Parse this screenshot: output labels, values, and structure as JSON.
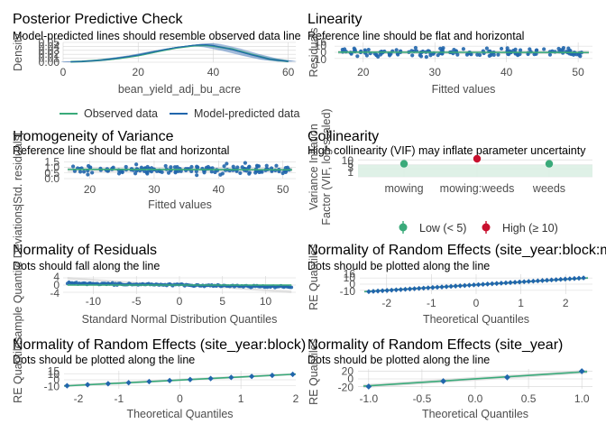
{
  "colors": {
    "green": "#3aaa7a",
    "blue": "#2166ac",
    "red": "#c8102e",
    "panel": "#ebebeb",
    "grid": "#d4d4d4",
    "band": "#d6d6d6"
  },
  "chart_data": [
    {
      "id": "ppc",
      "type": "line",
      "title": "Posterior Predictive Check",
      "subtitle": "Model-predicted lines should resemble observed data line",
      "xlabel": "bean_yield_adj_bu_acre",
      "ylabel": "Density",
      "xlim": [
        0,
        62
      ],
      "ylim": [
        0,
        0.05
      ],
      "xticks": [
        0,
        20,
        40,
        60
      ],
      "yticks": [
        "0.00",
        "0.01",
        "0.02",
        "0.03",
        "0.04",
        "0.05"
      ],
      "x": [
        2,
        5,
        10,
        15,
        20,
        25,
        30,
        35,
        38,
        40,
        45,
        50,
        55,
        60
      ],
      "series": [
        {
          "name": "Observed data",
          "values": [
            0.001,
            0.002,
            0.005,
            0.01,
            0.017,
            0.027,
            0.036,
            0.042,
            0.043,
            0.041,
            0.033,
            0.02,
            0.008,
            0.002
          ]
        },
        {
          "name": "Model-predicted data",
          "values": [
            0.001,
            0.002,
            0.005,
            0.011,
            0.018,
            0.028,
            0.037,
            0.043,
            0.044,
            0.042,
            0.032,
            0.019,
            0.008,
            0.002
          ]
        }
      ],
      "legend": [
        "Observed data",
        "Model-predicted data"
      ]
    },
    {
      "id": "lin",
      "type": "scatter",
      "title": "Linearity",
      "subtitle": "Reference line should be flat and horizontal",
      "xlabel": "Fitted values",
      "ylabel": "Residuals",
      "xlim": [
        16,
        52
      ],
      "ylim": [
        -16,
        16
      ],
      "xticks": [
        20,
        30,
        40,
        50
      ],
      "yticks": [
        16,
        10,
        0,
        -10
      ]
    },
    {
      "id": "hov",
      "type": "scatter",
      "title": "Homogeneity of Variance",
      "subtitle": "Reference line should be flat and horizontal",
      "xlabel": "Fitted values",
      "ylabel": "|Std. residuals|",
      "xlim": [
        16,
        52
      ],
      "ylim": [
        0,
        1.6
      ],
      "xticks": [
        20,
        30,
        40,
        50
      ],
      "yticks": [
        "1.5",
        "1.0",
        "0.5",
        "0.0"
      ]
    },
    {
      "id": "col",
      "type": "scatter",
      "title": "Collinearity",
      "subtitle": "High collinearity (VIF) may inflate parameter uncertainty",
      "xlabel": "",
      "ylabel": "Variance Inflation Factor (VIF, log-scaled)",
      "categories": [
        "mowing",
        "mowing:weeds",
        "weeds"
      ],
      "values": [
        5.8,
        11.5,
        5.8
      ],
      "yticks": [
        "10",
        "5",
        "3",
        "1"
      ],
      "legend": [
        "Low (< 5)",
        "High (≥ 10)"
      ]
    },
    {
      "id": "nres",
      "type": "scatter",
      "title": "Normality of Residuals",
      "subtitle": "Dots should fall along the line",
      "xlabel": "Standard Normal Distribution Quantiles",
      "ylabel": "Sample Quantile Deviations",
      "xlim": [
        -13.5,
        13.5
      ],
      "ylim": [
        -5,
        5
      ],
      "xticks": [
        "-10",
        "-5",
        "0",
        "5",
        "10"
      ],
      "yticks": [
        "4",
        "0",
        "-4"
      ]
    },
    {
      "id": "re1",
      "type": "scatter",
      "title": "Normality of Random Effects (site_year:block:mowing)",
      "subtitle": "Dots should be plotted along the line",
      "xlabel": "Theoretical Quantiles",
      "ylabel": "RE Quantiles",
      "xlim": [
        -2.6,
        2.6
      ],
      "ylim": [
        -16,
        16
      ],
      "xticks": [
        "-2",
        "-1",
        "0",
        "1",
        "2"
      ],
      "yticks": [
        "16",
        "10",
        "0",
        "-10"
      ]
    },
    {
      "id": "re2",
      "type": "scatter",
      "title": "Normality of Random Effects (site_year:block)",
      "subtitle": "Dots should be plotted along the line",
      "xlabel": "Theoretical Quantiles",
      "ylabel": "RE Quantiles",
      "xlim": [
        -2,
        2
      ],
      "ylim": [
        -16,
        16
      ],
      "xticks": [
        "-2",
        "-1",
        "0",
        "1",
        "2"
      ],
      "yticks": [
        "15",
        "10",
        "0",
        "-10"
      ]
    },
    {
      "id": "re3",
      "type": "scatter",
      "title": "Normality of Random Effects (site_year)",
      "subtitle": "Dots should be plotted along the line",
      "xlabel": "Theoretical Quantiles",
      "ylabel": "RE Quantiles",
      "xlim": [
        -1.1,
        1.1
      ],
      "ylim": [
        -26,
        26
      ],
      "xticks": [
        "-1.0",
        "-0.5",
        "0.0",
        "0.5",
        "1.0"
      ],
      "yticks": [
        "20",
        "0",
        "-20"
      ],
      "x": [
        -1.0,
        -0.3,
        0.3,
        1.0
      ],
      "values": [
        -20,
        -6,
        4,
        20
      ]
    }
  ]
}
